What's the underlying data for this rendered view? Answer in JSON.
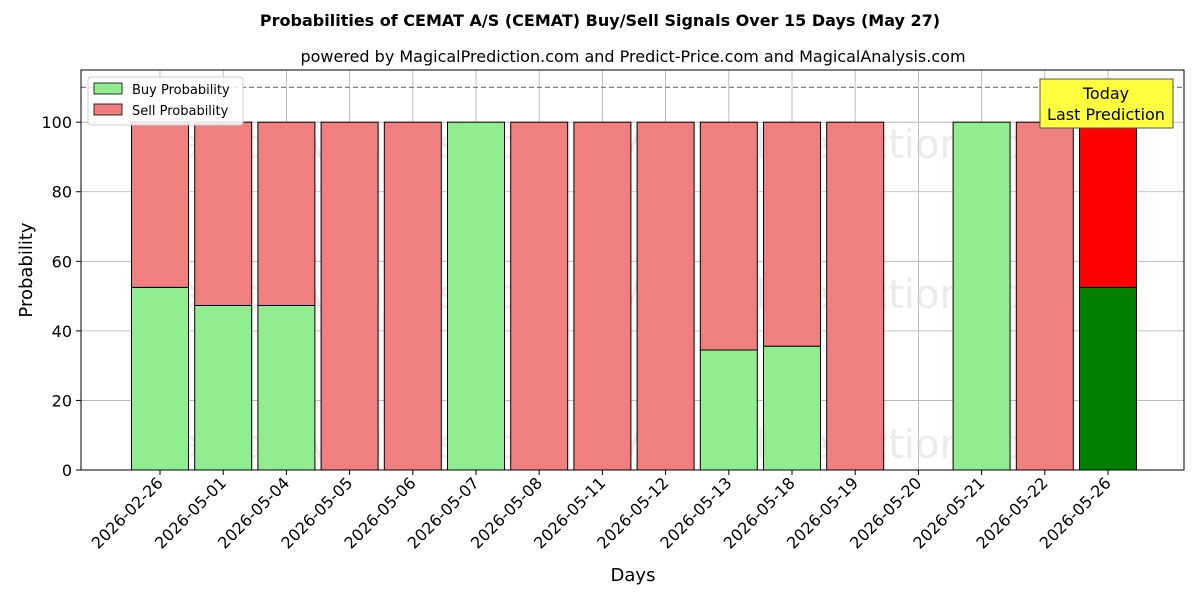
{
  "chart_data": {
    "type": "bar",
    "stacked": true,
    "title": "Probabilities of CEMAT A/S (CEMAT) Buy/Sell Signals Over 15 Days (May 27)",
    "subtitle": "powered by MagicalPrediction.com and Predict-Price.com and MagicalAnalysis.com",
    "xlabel": "Days",
    "ylabel": "Probability",
    "ylim": [
      0,
      115
    ],
    "yticks": [
      0,
      20,
      40,
      60,
      80,
      100
    ],
    "grid": true,
    "legend_position": "top-left",
    "reference_line": 110,
    "categories": [
      "2026-02-26",
      "2026-05-01",
      "2026-05-04",
      "2026-05-05",
      "2026-05-06",
      "2026-05-07",
      "2026-05-08",
      "2026-05-11",
      "2026-05-12",
      "2026-05-13",
      "2026-05-18",
      "2026-05-19",
      "2026-05-20",
      "2026-05-21",
      "2026-05-22",
      "2026-05-26"
    ],
    "series": [
      {
        "name": "Buy Probability",
        "color": "#90ee90",
        "highlight_color": "#008000",
        "values": [
          52.5,
          47.3,
          47.3,
          0,
          0,
          100,
          0,
          0,
          0,
          34.5,
          35.6,
          0,
          0,
          100,
          0,
          52.5
        ]
      },
      {
        "name": "Sell Probability",
        "color": "#f08080",
        "highlight_color": "#ff0000",
        "values": [
          47.5,
          52.7,
          52.7,
          100,
          100,
          0,
          100,
          100,
          100,
          65.5,
          64.4,
          100,
          0,
          0,
          100,
          47.5
        ]
      }
    ],
    "highlight_index": 15,
    "annotation": {
      "lines": [
        "Today",
        "Last Prediction"
      ],
      "background": "#ffff40"
    },
    "watermarks": [
      "MagicalAnalysis.com",
      "MagicalPrediction.com"
    ]
  }
}
